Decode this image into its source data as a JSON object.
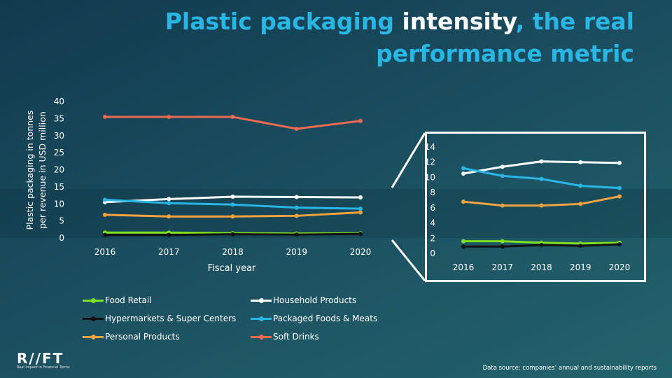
{
  "title": {
    "part1": "Plastic packaging ",
    "highlight": "intensity",
    "part2": ", the real performance metric"
  },
  "chart_data": [
    {
      "type": "line",
      "ylabel_line1": "Plastic packaging in tonnes",
      "ylabel_line2": "per revenue in USD million",
      "xlabel": "Fiscal year",
      "x": [
        "2016",
        "2017",
        "2018",
        "2019",
        "2020"
      ],
      "ylim": [
        0,
        40
      ],
      "yticks": [
        "0",
        "5",
        "10",
        "15",
        "20",
        "25",
        "30",
        "35",
        "40"
      ],
      "legend_position": "bottom",
      "series": [
        {
          "name": "Food Retail",
          "color": "#7ee01e",
          "values": [
            1.6,
            1.6,
            1.4,
            1.3,
            1.4
          ]
        },
        {
          "name": "Household Products",
          "color": "#ffffff",
          "values": [
            10.5,
            11.4,
            12.1,
            12.0,
            11.9
          ]
        },
        {
          "name": "Hypermarkets & Super Centers",
          "color": "#111111",
          "values": [
            0.9,
            0.9,
            1.1,
            1.0,
            1.2
          ]
        },
        {
          "name": "Packaged Foods & Meats",
          "color": "#29b6e5",
          "values": [
            11.2,
            10.2,
            9.8,
            8.9,
            8.6
          ]
        },
        {
          "name": "Personal Products",
          "color": "#f5a340",
          "values": [
            6.8,
            6.3,
            6.3,
            6.5,
            7.5
          ]
        },
        {
          "name": "Soft Drinks",
          "color": "#ec6a4f",
          "values": [
            35.5,
            35.5,
            35.5,
            32.0,
            34.3
          ]
        }
      ]
    },
    {
      "type": "line",
      "x": [
        "2016",
        "2017",
        "2018",
        "2019",
        "2020"
      ],
      "ylim": [
        0,
        14
      ],
      "yticks": [
        "0",
        "2",
        "4",
        "6",
        "8",
        "10",
        "12",
        "14"
      ],
      "series": [
        {
          "name": "Food Retail",
          "color": "#7ee01e",
          "values": [
            1.6,
            1.6,
            1.4,
            1.3,
            1.4
          ]
        },
        {
          "name": "Household Products",
          "color": "#ffffff",
          "values": [
            10.5,
            11.4,
            12.1,
            12.0,
            11.9
          ]
        },
        {
          "name": "Hypermarkets & Super Centers",
          "color": "#111111",
          "values": [
            0.9,
            0.9,
            1.1,
            1.0,
            1.2
          ]
        },
        {
          "name": "Packaged Foods & Meats",
          "color": "#29b6e5",
          "values": [
            11.2,
            10.2,
            9.8,
            8.9,
            8.6
          ]
        },
        {
          "name": "Personal Products",
          "color": "#f5a340",
          "values": [
            6.8,
            6.3,
            6.3,
            6.5,
            7.5
          ]
        }
      ]
    }
  ],
  "logo": {
    "text": "R//FT",
    "tagline": "Real Impact in Financial Terms"
  },
  "source": "Data source: companies’ annual and sustainability reports"
}
